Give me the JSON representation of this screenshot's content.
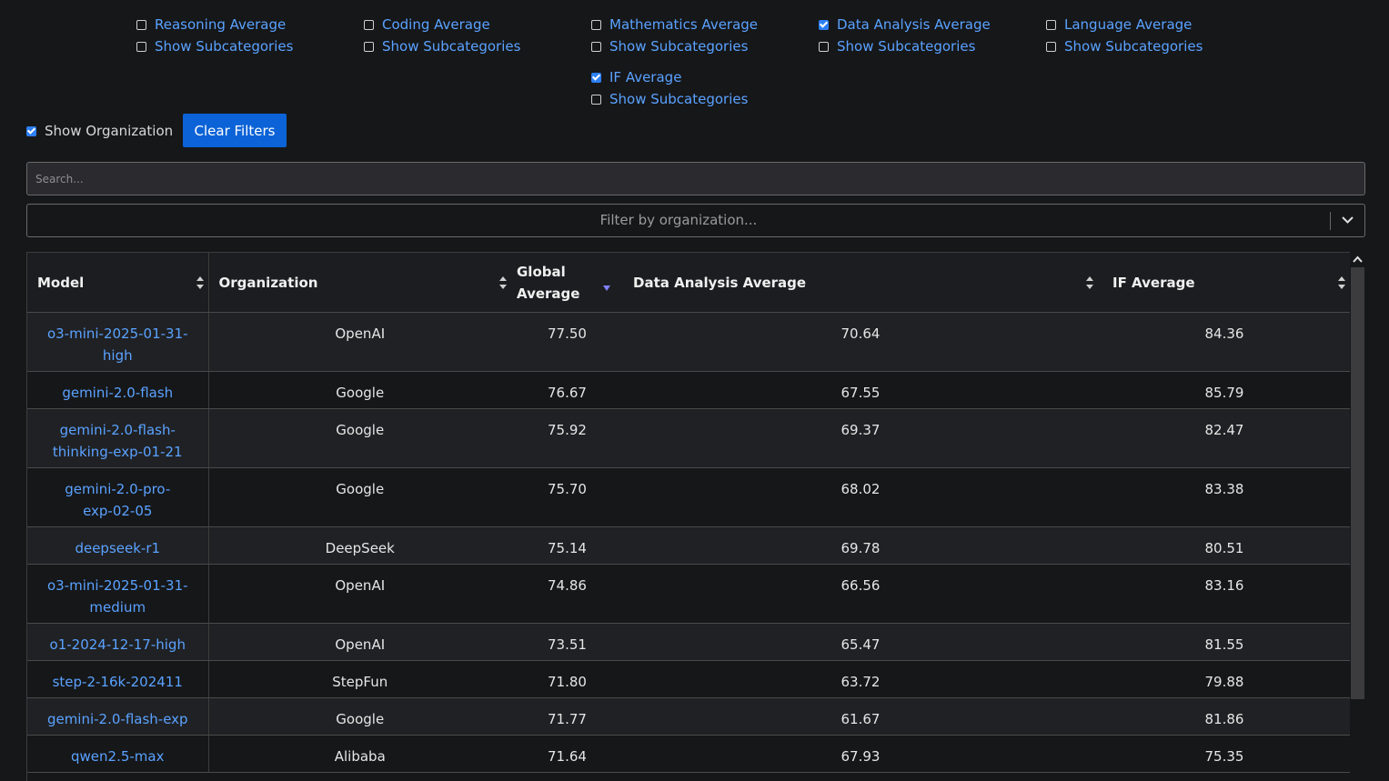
{
  "categories": [
    {
      "avg_label": "Reasoning Average",
      "avg_checked": false,
      "sub_label": "Show Subcategories",
      "sub_checked": false
    },
    {
      "avg_label": "Coding Average",
      "avg_checked": false,
      "sub_label": "Show Subcategories",
      "sub_checked": false
    },
    {
      "avg_label": "Mathematics Average",
      "avg_checked": false,
      "sub_label": "Show Subcategories",
      "sub_checked": false
    },
    {
      "avg_label": "Data Analysis Average",
      "avg_checked": true,
      "sub_label": "Show Subcategories",
      "sub_checked": false
    },
    {
      "avg_label": "Language Average",
      "avg_checked": false,
      "sub_label": "Show Subcategories",
      "sub_checked": false
    },
    {
      "avg_label": "IF Average",
      "avg_checked": true,
      "sub_label": "Show Subcategories",
      "sub_checked": false
    }
  ],
  "controls": {
    "show_org_label": "Show Organization",
    "show_org_checked": true,
    "clear_label": "Clear Filters",
    "search_placeholder": "Search...",
    "org_filter_placeholder": "Filter by organization..."
  },
  "table": {
    "headers": {
      "model": "Model",
      "organization": "Organization",
      "global_line1": "Global",
      "global_line2": "Average",
      "data_analysis": "Data Analysis Average",
      "if_avg": "IF Average"
    },
    "sorted_column": "Global Average",
    "sort_direction": "descending",
    "rows": [
      {
        "model_line1": "o3-mini-2025-01-31-",
        "model_line2": "high",
        "org": "OpenAI",
        "global": "77.50",
        "data_analysis": "70.64",
        "if_avg": "84.36"
      },
      {
        "model_line1": "gemini-2.0-flash",
        "model_line2": "",
        "org": "Google",
        "global": "76.67",
        "data_analysis": "67.55",
        "if_avg": "85.79"
      },
      {
        "model_line1": "gemini-2.0-flash-",
        "model_line2": "thinking-exp-01-21",
        "org": "Google",
        "global": "75.92",
        "data_analysis": "69.37",
        "if_avg": "82.47"
      },
      {
        "model_line1": "gemini-2.0-pro-",
        "model_line2": "exp-02-05",
        "org": "Google",
        "global": "75.70",
        "data_analysis": "68.02",
        "if_avg": "83.38"
      },
      {
        "model_line1": "deepseek-r1",
        "model_line2": "",
        "org": "DeepSeek",
        "global": "75.14",
        "data_analysis": "69.78",
        "if_avg": "80.51"
      },
      {
        "model_line1": "o3-mini-2025-01-31-",
        "model_line2": "medium",
        "org": "OpenAI",
        "global": "74.86",
        "data_analysis": "66.56",
        "if_avg": "83.16"
      },
      {
        "model_line1": "o1-2024-12-17-high",
        "model_line2": "",
        "org": "OpenAI",
        "global": "73.51",
        "data_analysis": "65.47",
        "if_avg": "81.55"
      },
      {
        "model_line1": "step-2-16k-202411",
        "model_line2": "",
        "org": "StepFun",
        "global": "71.80",
        "data_analysis": "63.72",
        "if_avg": "79.88"
      },
      {
        "model_line1": "gemini-2.0-flash-exp",
        "model_line2": "",
        "org": "Google",
        "global": "71.77",
        "data_analysis": "61.67",
        "if_avg": "81.86"
      },
      {
        "model_line1": "qwen2.5-max",
        "model_line2": "",
        "org": "Alibaba",
        "global": "71.64",
        "data_analysis": "67.93",
        "if_avg": "75.35"
      }
    ]
  },
  "colors": {
    "background": "#161719",
    "link": "#5aa2ff",
    "button": "#0c63d7",
    "checkbox_on": "#2d7ff3",
    "sort_active": "#8080ff"
  },
  "icons": {
    "sort": "sort-updown-icon",
    "sort_active": "sort-desc-icon",
    "dropdown": "chevron-down-icon",
    "scroll_up": "scroll-up-arrow-icon"
  }
}
